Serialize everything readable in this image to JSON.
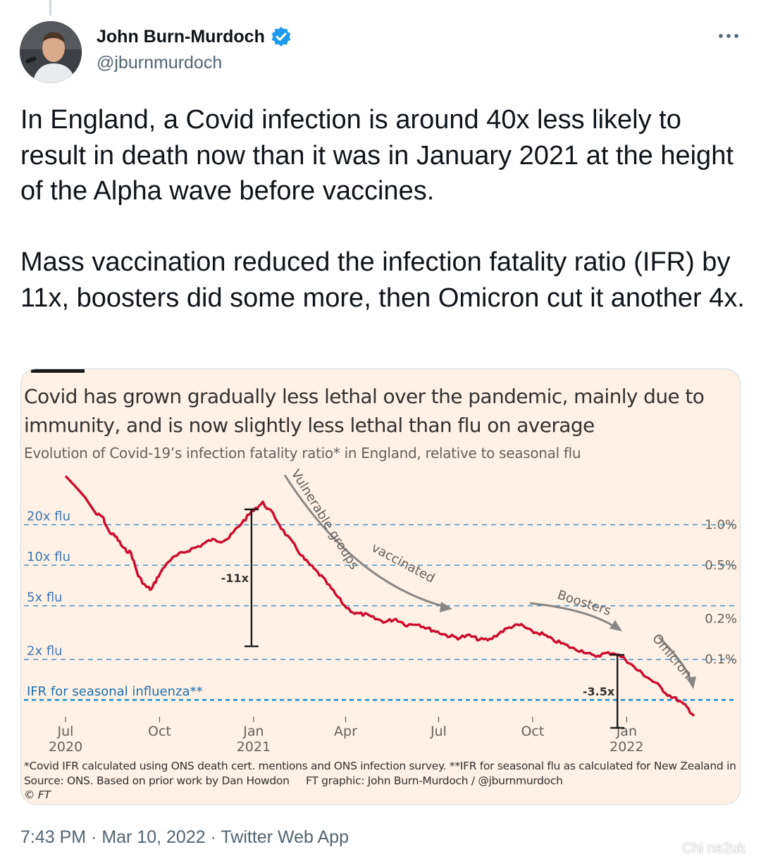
{
  "tweet": {
    "author_name": "John Burn-Murdoch",
    "author_handle": "@jburnmurdoch",
    "text": "In England, a Covid infection is around 40x less likely to result in death now than it was in January 2021 at the height of the Alpha wave before vaccines.\n\nMass vaccination reduced the infection fatality ratio (IFR) by 11x, boosters did some more, then Omicron cut it another 4x.",
    "timestamp": "7:43 PM · Mar 10, 2022 · Twitter Web App",
    "verified_color": "#1d9bf0"
  },
  "watermark": "Chi na2uk",
  "card": {
    "title": "Covid has grown gradually less lethal over the pandemic, mainly due to immunity, and is now slightly less lethal than flu on average",
    "subtitle": "Evolution of Covid-19’s infection fatality ratio* in England, relative to seasonal flu",
    "footnote": "*Covid IFR calculated using ONS death cert. mentions and ONS infection survey. **IFR for seasonal flu as calculated for New Zealand in BMJ",
    "source": "Source: ONS. Based on prior work by Dan Howdon",
    "credit": "FT graphic: John Burn-Murdoch / @jburnmurdoch",
    "copyright": "© FT",
    "background_color": "#fff1e5",
    "line_color": "#cc0a2d",
    "grid_color": "#4a91c2",
    "baseline_color": "#1a8fd4"
  },
  "chart_data": {
    "type": "line",
    "y_scale": "log",
    "x_range": [
      "2020-07-01",
      "2022-03-10"
    ],
    "y_range_ifr_percent": [
      0.038,
      2.4
    ],
    "y_ticks_left": [
      {
        "label": "20x flu",
        "multiple": 20
      },
      {
        "label": "10x flu",
        "multiple": 10
      },
      {
        "label": "5x flu",
        "multiple": 5
      },
      {
        "label": "2x flu",
        "multiple": 2
      },
      {
        "label": "IFR for seasonal influenza**",
        "multiple": 1
      }
    ],
    "y_ticks_right": [
      {
        "label": "1.0%",
        "value": 1.0
      },
      {
        "label": "0.5%",
        "value": 0.5
      },
      {
        "label": "0.2%",
        "value": 0.2
      },
      {
        "label": "0.1%",
        "value": 0.1
      }
    ],
    "flu_ifr_percent": 0.05,
    "x_ticks": [
      {
        "date": "2020-07-01",
        "label": "Jul",
        "year": "2020"
      },
      {
        "date": "2020-10-01",
        "label": "Oct",
        "year": ""
      },
      {
        "date": "2021-01-01",
        "label": "Jan",
        "year": "2021"
      },
      {
        "date": "2021-04-01",
        "label": "Apr",
        "year": ""
      },
      {
        "date": "2021-07-01",
        "label": "Jul",
        "year": ""
      },
      {
        "date": "2021-10-01",
        "label": "Oct",
        "year": ""
      },
      {
        "date": "2022-01-01",
        "label": "Jan",
        "year": "2022"
      }
    ],
    "series": [
      {
        "points": [
          [
            "2020-07-01",
            2.3
          ],
          [
            "2020-07-10",
            1.95
          ],
          [
            "2020-07-20",
            1.6
          ],
          [
            "2020-07-31",
            1.2
          ],
          [
            "2020-08-06",
            1.15
          ],
          [
            "2020-08-12",
            0.9
          ],
          [
            "2020-08-20",
            0.8
          ],
          [
            "2020-08-27",
            0.66
          ],
          [
            "2020-09-03",
            0.62
          ],
          [
            "2020-09-10",
            0.42
          ],
          [
            "2020-09-17",
            0.35
          ],
          [
            "2020-09-23",
            0.33
          ],
          [
            "2020-09-30",
            0.42
          ],
          [
            "2020-10-10",
            0.54
          ],
          [
            "2020-10-20",
            0.6
          ],
          [
            "2020-10-30",
            0.65
          ],
          [
            "2020-11-10",
            0.7
          ],
          [
            "2020-11-20",
            0.77
          ],
          [
            "2020-11-30",
            0.76
          ],
          [
            "2020-12-08",
            0.8
          ],
          [
            "2020-12-16",
            0.95
          ],
          [
            "2020-12-26",
            1.15
          ],
          [
            "2021-01-01",
            1.3
          ],
          [
            "2021-01-10",
            1.45
          ],
          [
            "2021-01-20",
            1.2
          ],
          [
            "2021-01-30",
            0.9
          ],
          [
            "2021-02-10",
            0.7
          ],
          [
            "2021-02-20",
            0.55
          ],
          [
            "2021-03-01",
            0.47
          ],
          [
            "2021-03-10",
            0.4
          ],
          [
            "2021-03-20",
            0.32
          ],
          [
            "2021-03-31",
            0.25
          ],
          [
            "2021-04-10",
            0.22
          ],
          [
            "2021-04-20",
            0.215
          ],
          [
            "2021-04-30",
            0.2
          ],
          [
            "2021-05-10",
            0.19
          ],
          [
            "2021-05-20",
            0.2
          ],
          [
            "2021-05-31",
            0.18
          ],
          [
            "2021-06-10",
            0.185
          ],
          [
            "2021-06-20",
            0.17
          ],
          [
            "2021-06-30",
            0.16
          ],
          [
            "2021-07-10",
            0.15
          ],
          [
            "2021-07-20",
            0.145
          ],
          [
            "2021-07-31",
            0.15
          ],
          [
            "2021-08-10",
            0.14
          ],
          [
            "2021-08-20",
            0.14
          ],
          [
            "2021-08-31",
            0.16
          ],
          [
            "2021-09-10",
            0.175
          ],
          [
            "2021-09-20",
            0.18
          ],
          [
            "2021-09-30",
            0.16
          ],
          [
            "2021-10-10",
            0.155
          ],
          [
            "2021-10-20",
            0.14
          ],
          [
            "2021-10-31",
            0.13
          ],
          [
            "2021-11-10",
            0.12
          ],
          [
            "2021-11-20",
            0.115
          ],
          [
            "2021-11-30",
            0.105
          ],
          [
            "2021-12-10",
            0.11
          ],
          [
            "2021-12-20",
            0.112
          ],
          [
            "2021-12-31",
            0.1
          ],
          [
            "2022-01-10",
            0.085
          ],
          [
            "2022-01-20",
            0.075
          ],
          [
            "2022-01-31",
            0.065
          ],
          [
            "2022-02-10",
            0.055
          ],
          [
            "2022-02-20",
            0.05
          ],
          [
            "2022-03-01",
            0.044
          ],
          [
            "2022-03-08",
            0.038
          ]
        ]
      }
    ],
    "annotations": [
      {
        "text": "-11x",
        "type": "bracket",
        "date": "2021-01-01",
        "from": 1.3,
        "to": 0.125
      },
      {
        "text": "-3.5x",
        "type": "bracket",
        "date": "2021-12-25",
        "from": 0.108,
        "to": 0.031
      },
      {
        "text": "Vulnerable groups vaccinated",
        "type": "arrow-label"
      },
      {
        "text": "Boosters",
        "type": "arrow-label"
      },
      {
        "text": "Omicron",
        "type": "arrow-label"
      }
    ]
  }
}
